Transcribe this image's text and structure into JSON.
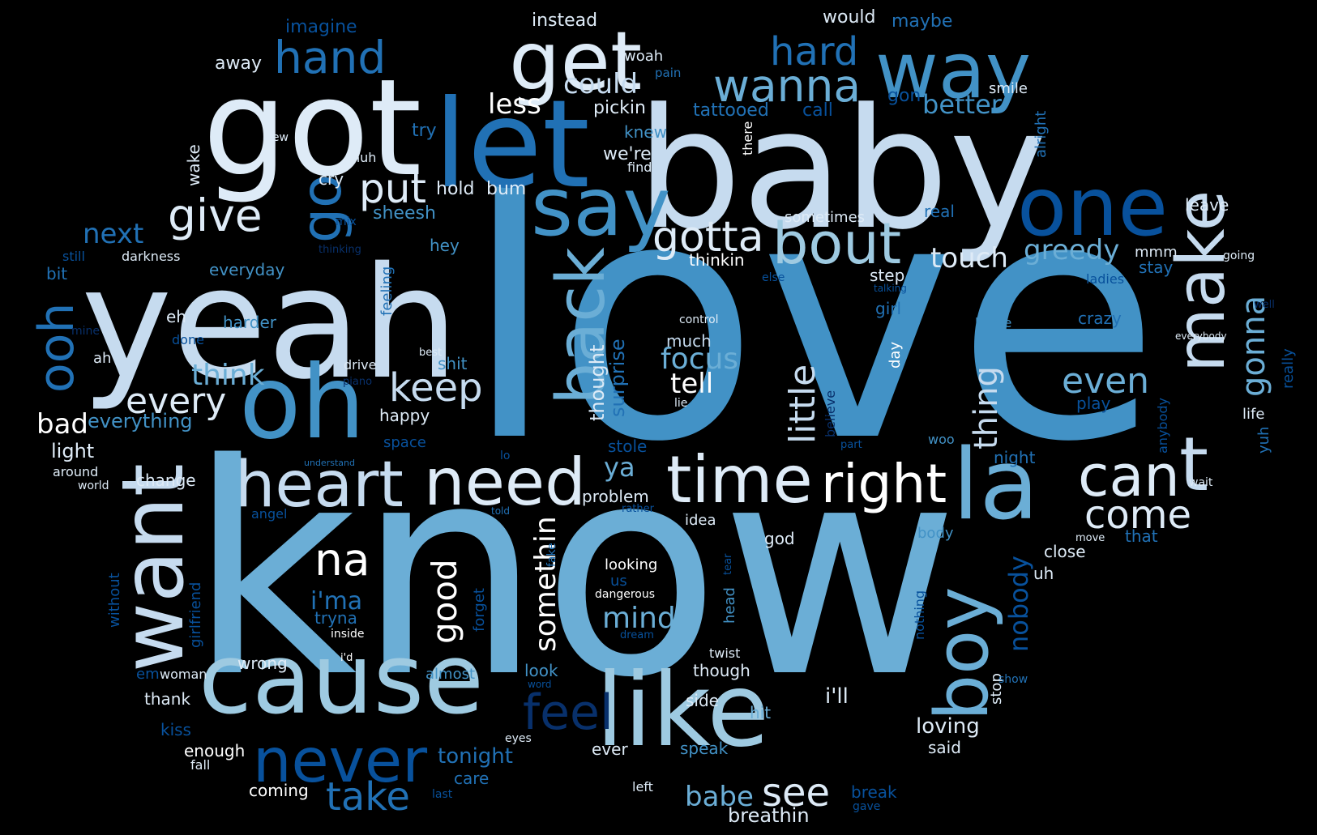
{
  "title": "Word cloud",
  "palette": {
    "background": "#000000",
    "white": "#FFFFFF",
    "very_light": "#DEEBF7",
    "light": "#C6DBEF",
    "light_mid": "#9ECAE1",
    "mid": "#6BAED6",
    "mid2": "#4292C6",
    "mid_dark": "#2171B5",
    "dark": "#08519C",
    "darkest": "#08306B"
  },
  "words": [
    {
      "text": "love",
      "color": "mid2"
    },
    {
      "text": "know",
      "color": "mid"
    },
    {
      "text": "baby",
      "color": "light"
    },
    {
      "text": "yeah",
      "color": "light"
    },
    {
      "text": "got",
      "color": "very_light"
    },
    {
      "text": "let",
      "color": "mid_dark"
    },
    {
      "text": "cause",
      "color": "light_mid"
    },
    {
      "text": "like",
      "color": "light_mid"
    },
    {
      "text": "oh",
      "color": "mid2"
    },
    {
      "text": "want",
      "color": "light"
    },
    {
      "text": "one",
      "color": "dark"
    },
    {
      "text": "say",
      "color": "mid2"
    },
    {
      "text": "get",
      "color": "very_light"
    },
    {
      "text": "way",
      "color": "mid2"
    },
    {
      "text": "back",
      "color": "mid"
    },
    {
      "text": "make",
      "color": "light"
    },
    {
      "text": "heart",
      "color": "light"
    },
    {
      "text": "need",
      "color": "very_light"
    },
    {
      "text": "time",
      "color": "very_light"
    },
    {
      "text": "right",
      "color": "white"
    },
    {
      "text": "la",
      "color": "mid"
    },
    {
      "text": "boy",
      "color": "mid"
    },
    {
      "text": "t",
      "color": "light"
    },
    {
      "text": "can",
      "color": "very_light"
    },
    {
      "text": "bout",
      "color": "light_mid"
    },
    {
      "text": "never",
      "color": "dark"
    },
    {
      "text": "feel",
      "color": "darkest"
    },
    {
      "text": "go",
      "color": "mid_dark"
    },
    {
      "text": "ooh",
      "color": "mid_dark"
    },
    {
      "text": "na",
      "color": "white"
    },
    {
      "text": "see",
      "color": "very_light"
    },
    {
      "text": "take",
      "color": "mid_dark"
    },
    {
      "text": "hand",
      "color": "mid_dark"
    },
    {
      "text": "wanna",
      "color": "mid"
    },
    {
      "text": "hard",
      "color": "mid_dark"
    },
    {
      "text": "put",
      "color": "very_light"
    },
    {
      "text": "give",
      "color": "very_light"
    },
    {
      "text": "gotta",
      "color": "very_light"
    },
    {
      "text": "every",
      "color": "very_light"
    },
    {
      "text": "keep",
      "color": "light"
    },
    {
      "text": "little",
      "color": "light"
    },
    {
      "text": "gonna",
      "color": "mid"
    },
    {
      "text": "good",
      "color": "white"
    },
    {
      "text": "come",
      "color": "very_light"
    },
    {
      "text": "even",
      "color": "mid"
    },
    {
      "text": "thing",
      "color": "light"
    },
    {
      "text": "somethin",
      "color": "white"
    },
    {
      "text": "mind",
      "color": "mid"
    },
    {
      "text": "think",
      "color": "mid"
    },
    {
      "text": "focus",
      "color": "mid"
    },
    {
      "text": "touch",
      "color": "very_light"
    },
    {
      "text": "greedy",
      "color": "mid"
    },
    {
      "text": "better",
      "color": "mid2"
    },
    {
      "text": "could",
      "color": "light"
    },
    {
      "text": "next",
      "color": "mid_dark"
    },
    {
      "text": "tell",
      "color": "white"
    },
    {
      "text": "less",
      "color": "white"
    },
    {
      "text": "babe",
      "color": "mid"
    },
    {
      "text": "nobody",
      "color": "dark"
    },
    {
      "text": "i'ma",
      "color": "mid_dark"
    },
    {
      "text": "bad",
      "color": "white"
    },
    {
      "text": "ya",
      "color": "mid"
    },
    {
      "text": "i'll",
      "color": "very_light"
    },
    {
      "text": "loving",
      "color": "very_light"
    },
    {
      "text": "breathin",
      "color": "very_light"
    },
    {
      "text": "tonight",
      "color": "mid_dark"
    },
    {
      "text": "surprise",
      "color": "mid_dark"
    },
    {
      "text": "thought",
      "color": "very_light"
    },
    {
      "text": "everything",
      "color": "mid2"
    },
    {
      "text": "light",
      "color": "very_light"
    },
    {
      "text": "pickin",
      "color": "very_light"
    },
    {
      "text": "tattooed",
      "color": "mid_dark"
    },
    {
      "text": "imagine",
      "color": "dark"
    },
    {
      "text": "instead",
      "color": "very_light"
    },
    {
      "text": "would",
      "color": "very_light"
    },
    {
      "text": "maybe",
      "color": "mid_dark"
    },
    {
      "text": "away",
      "color": "very_light"
    },
    {
      "text": "woah",
      "color": "very_light"
    },
    {
      "text": "pain",
      "color": "mid_dark"
    },
    {
      "text": "call",
      "color": "dark"
    },
    {
      "text": "gon",
      "color": "dark"
    },
    {
      "text": "smile",
      "color": "very_light"
    },
    {
      "text": "alright",
      "color": "mid_dark"
    },
    {
      "text": "try",
      "color": "mid_dark"
    },
    {
      "text": "knew",
      "color": "mid2"
    },
    {
      "text": "we're",
      "color": "very_light"
    },
    {
      "text": "find",
      "color": "very_light"
    },
    {
      "text": "there",
      "color": "white"
    },
    {
      "text": "new",
      "color": "very_light"
    },
    {
      "text": "huh",
      "color": "very_light"
    },
    {
      "text": "wake",
      "color": "very_light"
    },
    {
      "text": "cry",
      "color": "very_light"
    },
    {
      "text": "hold",
      "color": "very_light"
    },
    {
      "text": "bum",
      "color": "very_light"
    },
    {
      "text": "sometimes",
      "color": "very_light"
    },
    {
      "text": "leave",
      "color": "very_light"
    },
    {
      "text": "real",
      "color": "mid_dark"
    },
    {
      "text": "sheesh",
      "color": "mid2"
    },
    {
      "text": "mix",
      "color": "dark"
    },
    {
      "text": "still",
      "color": "dark"
    },
    {
      "text": "darkness",
      "color": "very_light"
    },
    {
      "text": "thinking",
      "color": "darkest"
    },
    {
      "text": "everyday",
      "color": "mid2"
    },
    {
      "text": "hey",
      "color": "mid2"
    },
    {
      "text": "bit",
      "color": "mid_dark"
    },
    {
      "text": "feeling",
      "color": "mid_dark"
    },
    {
      "text": "thinkin",
      "color": "white"
    },
    {
      "text": "step",
      "color": "very_light"
    },
    {
      "text": "mmm",
      "color": "very_light"
    },
    {
      "text": "going",
      "color": "very_light"
    },
    {
      "text": "stay",
      "color": "mid_dark"
    },
    {
      "text": "else",
      "color": "dark"
    },
    {
      "text": "talking",
      "color": "dark"
    },
    {
      "text": "ladies",
      "color": "dark"
    },
    {
      "text": "girl",
      "color": "mid_dark"
    },
    {
      "text": "control",
      "color": "very_light"
    },
    {
      "text": "crazy",
      "color": "mid_dark"
    },
    {
      "text": "home",
      "color": "mid2"
    },
    {
      "text": "everybody",
      "color": "very_light"
    },
    {
      "text": "well",
      "color": "darkest"
    },
    {
      "text": "eh",
      "color": "very_light"
    },
    {
      "text": "harder",
      "color": "mid2"
    },
    {
      "text": "mine",
      "color": "darkest"
    },
    {
      "text": "done",
      "color": "dark"
    },
    {
      "text": "much",
      "color": "light"
    },
    {
      "text": "best",
      "color": "very_light"
    },
    {
      "text": "day",
      "color": "white"
    },
    {
      "text": "believe",
      "color": "darkest"
    },
    {
      "text": "really",
      "color": "dark"
    },
    {
      "text": "ah",
      "color": "very_light"
    },
    {
      "text": "drive",
      "color": "very_light"
    },
    {
      "text": "shit",
      "color": "mid2"
    },
    {
      "text": "piano",
      "color": "darkest"
    },
    {
      "text": "happy",
      "color": "very_light"
    },
    {
      "text": "lie",
      "color": "very_light"
    },
    {
      "text": "play",
      "color": "dark"
    },
    {
      "text": "life",
      "color": "very_light"
    },
    {
      "text": "anybody",
      "color": "dark"
    },
    {
      "text": "yuh",
      "color": "mid_dark"
    },
    {
      "text": "space",
      "color": "dark"
    },
    {
      "text": "stole",
      "color": "dark"
    },
    {
      "text": "woo",
      "color": "mid2"
    },
    {
      "text": "part",
      "color": "dark"
    },
    {
      "text": "around",
      "color": "very_light"
    },
    {
      "text": "understand",
      "color": "mid_dark"
    },
    {
      "text": "lo",
      "color": "dark"
    },
    {
      "text": "night",
      "color": "mid_dark"
    },
    {
      "text": "world",
      "color": "very_light"
    },
    {
      "text": "change",
      "color": "very_light"
    },
    {
      "text": "wait",
      "color": "very_light"
    },
    {
      "text": "problem",
      "color": "very_light"
    },
    {
      "text": "angel",
      "color": "dark"
    },
    {
      "text": "told",
      "color": "mid_dark"
    },
    {
      "text": "rather",
      "color": "dark"
    },
    {
      "text": "body",
      "color": "mid2"
    },
    {
      "text": "idea",
      "color": "very_light"
    },
    {
      "text": "that",
      "color": "mid_dark"
    },
    {
      "text": "move",
      "color": "very_light"
    },
    {
      "text": "god",
      "color": "very_light"
    },
    {
      "text": "close",
      "color": "very_light"
    },
    {
      "text": "fake",
      "color": "mid_dark"
    },
    {
      "text": "looking",
      "color": "white"
    },
    {
      "text": "without",
      "color": "dark"
    },
    {
      "text": "girlfriend",
      "color": "dark"
    },
    {
      "text": "forget",
      "color": "dark"
    },
    {
      "text": "uh",
      "color": "very_light"
    },
    {
      "text": "us",
      "color": "dark"
    },
    {
      "text": "tryna",
      "color": "mid_dark"
    },
    {
      "text": "dangerous",
      "color": "white"
    },
    {
      "text": "head",
      "color": "mid2"
    },
    {
      "text": "tear",
      "color": "dark"
    },
    {
      "text": "nothing",
      "color": "dark"
    },
    {
      "text": "inside",
      "color": "white"
    },
    {
      "text": "dream",
      "color": "dark"
    },
    {
      "text": "i'd",
      "color": "white"
    },
    {
      "text": "wrong",
      "color": "very_light"
    },
    {
      "text": "twist",
      "color": "very_light"
    },
    {
      "text": "stop",
      "color": "very_light"
    },
    {
      "text": "woman",
      "color": "very_light"
    },
    {
      "text": "em",
      "color": "dark"
    },
    {
      "text": "almost",
      "color": "mid2"
    },
    {
      "text": "look",
      "color": "mid2"
    },
    {
      "text": "though",
      "color": "very_light"
    },
    {
      "text": "show",
      "color": "mid_dark"
    },
    {
      "text": "word",
      "color": "dark"
    },
    {
      "text": "thank",
      "color": "very_light"
    },
    {
      "text": "side",
      "color": "very_light"
    },
    {
      "text": "hit",
      "color": "mid"
    },
    {
      "text": "kiss",
      "color": "dark"
    },
    {
      "text": "eyes",
      "color": "very_light"
    },
    {
      "text": "enough",
      "color": "white"
    },
    {
      "text": "said",
      "color": "very_light"
    },
    {
      "text": "speak",
      "color": "mid2"
    },
    {
      "text": "ever",
      "color": "very_light"
    },
    {
      "text": "fall",
      "color": "very_light"
    },
    {
      "text": "care",
      "color": "mid_dark"
    },
    {
      "text": "left",
      "color": "very_light"
    },
    {
      "text": "coming",
      "color": "white"
    },
    {
      "text": "last",
      "color": "dark"
    },
    {
      "text": "break",
      "color": "dark"
    },
    {
      "text": "gave",
      "color": "dark"
    }
  ]
}
